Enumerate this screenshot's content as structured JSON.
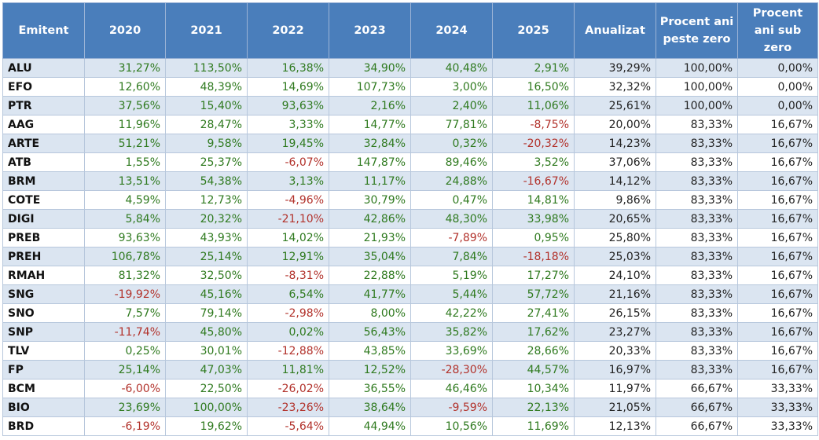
{
  "table": {
    "header": [
      "Emitent",
      "2020",
      "2021",
      "2022",
      "2023",
      "2024",
      "2025",
      "Anualizat",
      "Procent ani peste zero",
      "Procent ani sub zero"
    ],
    "rows": [
      [
        "ALU",
        "31,27%",
        "113,50%",
        "16,38%",
        "34,90%",
        "40,48%",
        "2,91%",
        "39,29%",
        "100,00%",
        "0,00%"
      ],
      [
        "EFO",
        "12,60%",
        "48,39%",
        "14,69%",
        "107,73%",
        "3,00%",
        "16,50%",
        "32,32%",
        "100,00%",
        "0,00%"
      ],
      [
        "PTR",
        "37,56%",
        "15,40%",
        "93,63%",
        "2,16%",
        "2,40%",
        "11,06%",
        "25,61%",
        "100,00%",
        "0,00%"
      ],
      [
        "AAG",
        "11,96%",
        "28,47%",
        "3,33%",
        "14,77%",
        "77,81%",
        "-8,75%",
        "20,00%",
        "83,33%",
        "16,67%"
      ],
      [
        "ARTE",
        "51,21%",
        "9,58%",
        "19,45%",
        "32,84%",
        "0,32%",
        "-20,32%",
        "14,23%",
        "83,33%",
        "16,67%"
      ],
      [
        "ATB",
        "1,55%",
        "25,37%",
        "-6,07%",
        "147,87%",
        "89,46%",
        "3,52%",
        "37,06%",
        "83,33%",
        "16,67%"
      ],
      [
        "BRM",
        "13,51%",
        "54,38%",
        "3,13%",
        "11,17%",
        "24,88%",
        "-16,67%",
        "14,12%",
        "83,33%",
        "16,67%"
      ],
      [
        "COTE",
        "4,59%",
        "12,73%",
        "-4,96%",
        "30,79%",
        "0,47%",
        "14,81%",
        "9,86%",
        "83,33%",
        "16,67%"
      ],
      [
        "DIGI",
        "5,84%",
        "20,32%",
        "-21,10%",
        "42,86%",
        "48,30%",
        "33,98%",
        "20,65%",
        "83,33%",
        "16,67%"
      ],
      [
        "PREB",
        "93,63%",
        "43,93%",
        "14,02%",
        "21,93%",
        "-7,89%",
        "0,95%",
        "25,80%",
        "83,33%",
        "16,67%"
      ],
      [
        "PREH",
        "106,78%",
        "25,14%",
        "12,91%",
        "35,04%",
        "7,84%",
        "-18,18%",
        "25,03%",
        "83,33%",
        "16,67%"
      ],
      [
        "RMAH",
        "81,32%",
        "32,50%",
        "-8,31%",
        "22,88%",
        "5,19%",
        "17,27%",
        "24,10%",
        "83,33%",
        "16,67%"
      ],
      [
        "SNG",
        "-19,92%",
        "45,16%",
        "6,54%",
        "41,77%",
        "5,44%",
        "57,72%",
        "21,16%",
        "83,33%",
        "16,67%"
      ],
      [
        "SNO",
        "7,57%",
        "79,14%",
        "-2,98%",
        "8,00%",
        "42,22%",
        "27,41%",
        "26,15%",
        "83,33%",
        "16,67%"
      ],
      [
        "SNP",
        "-11,74%",
        "45,80%",
        "0,02%",
        "56,43%",
        "35,82%",
        "17,62%",
        "23,27%",
        "83,33%",
        "16,67%"
      ],
      [
        "TLV",
        "0,25%",
        "30,01%",
        "-12,88%",
        "43,85%",
        "33,69%",
        "28,66%",
        "20,33%",
        "83,33%",
        "16,67%"
      ],
      [
        "FP",
        "25,14%",
        "47,03%",
        "11,81%",
        "12,52%",
        "-28,30%",
        "44,57%",
        "16,97%",
        "83,33%",
        "16,67%"
      ],
      [
        "BCM",
        "-6,00%",
        "22,50%",
        "-26,02%",
        "36,55%",
        "46,46%",
        "10,34%",
        "11,97%",
        "66,67%",
        "33,33%"
      ],
      [
        "BIO",
        "23,69%",
        "100,00%",
        "-23,26%",
        "38,64%",
        "-9,59%",
        "22,13%",
        "21,05%",
        "66,67%",
        "33,33%"
      ],
      [
        "BRD",
        "-6,19%",
        "19,62%",
        "-5,64%",
        "44,94%",
        "10,56%",
        "11,69%",
        "12,13%",
        "66,67%",
        "33,33%"
      ]
    ]
  }
}
